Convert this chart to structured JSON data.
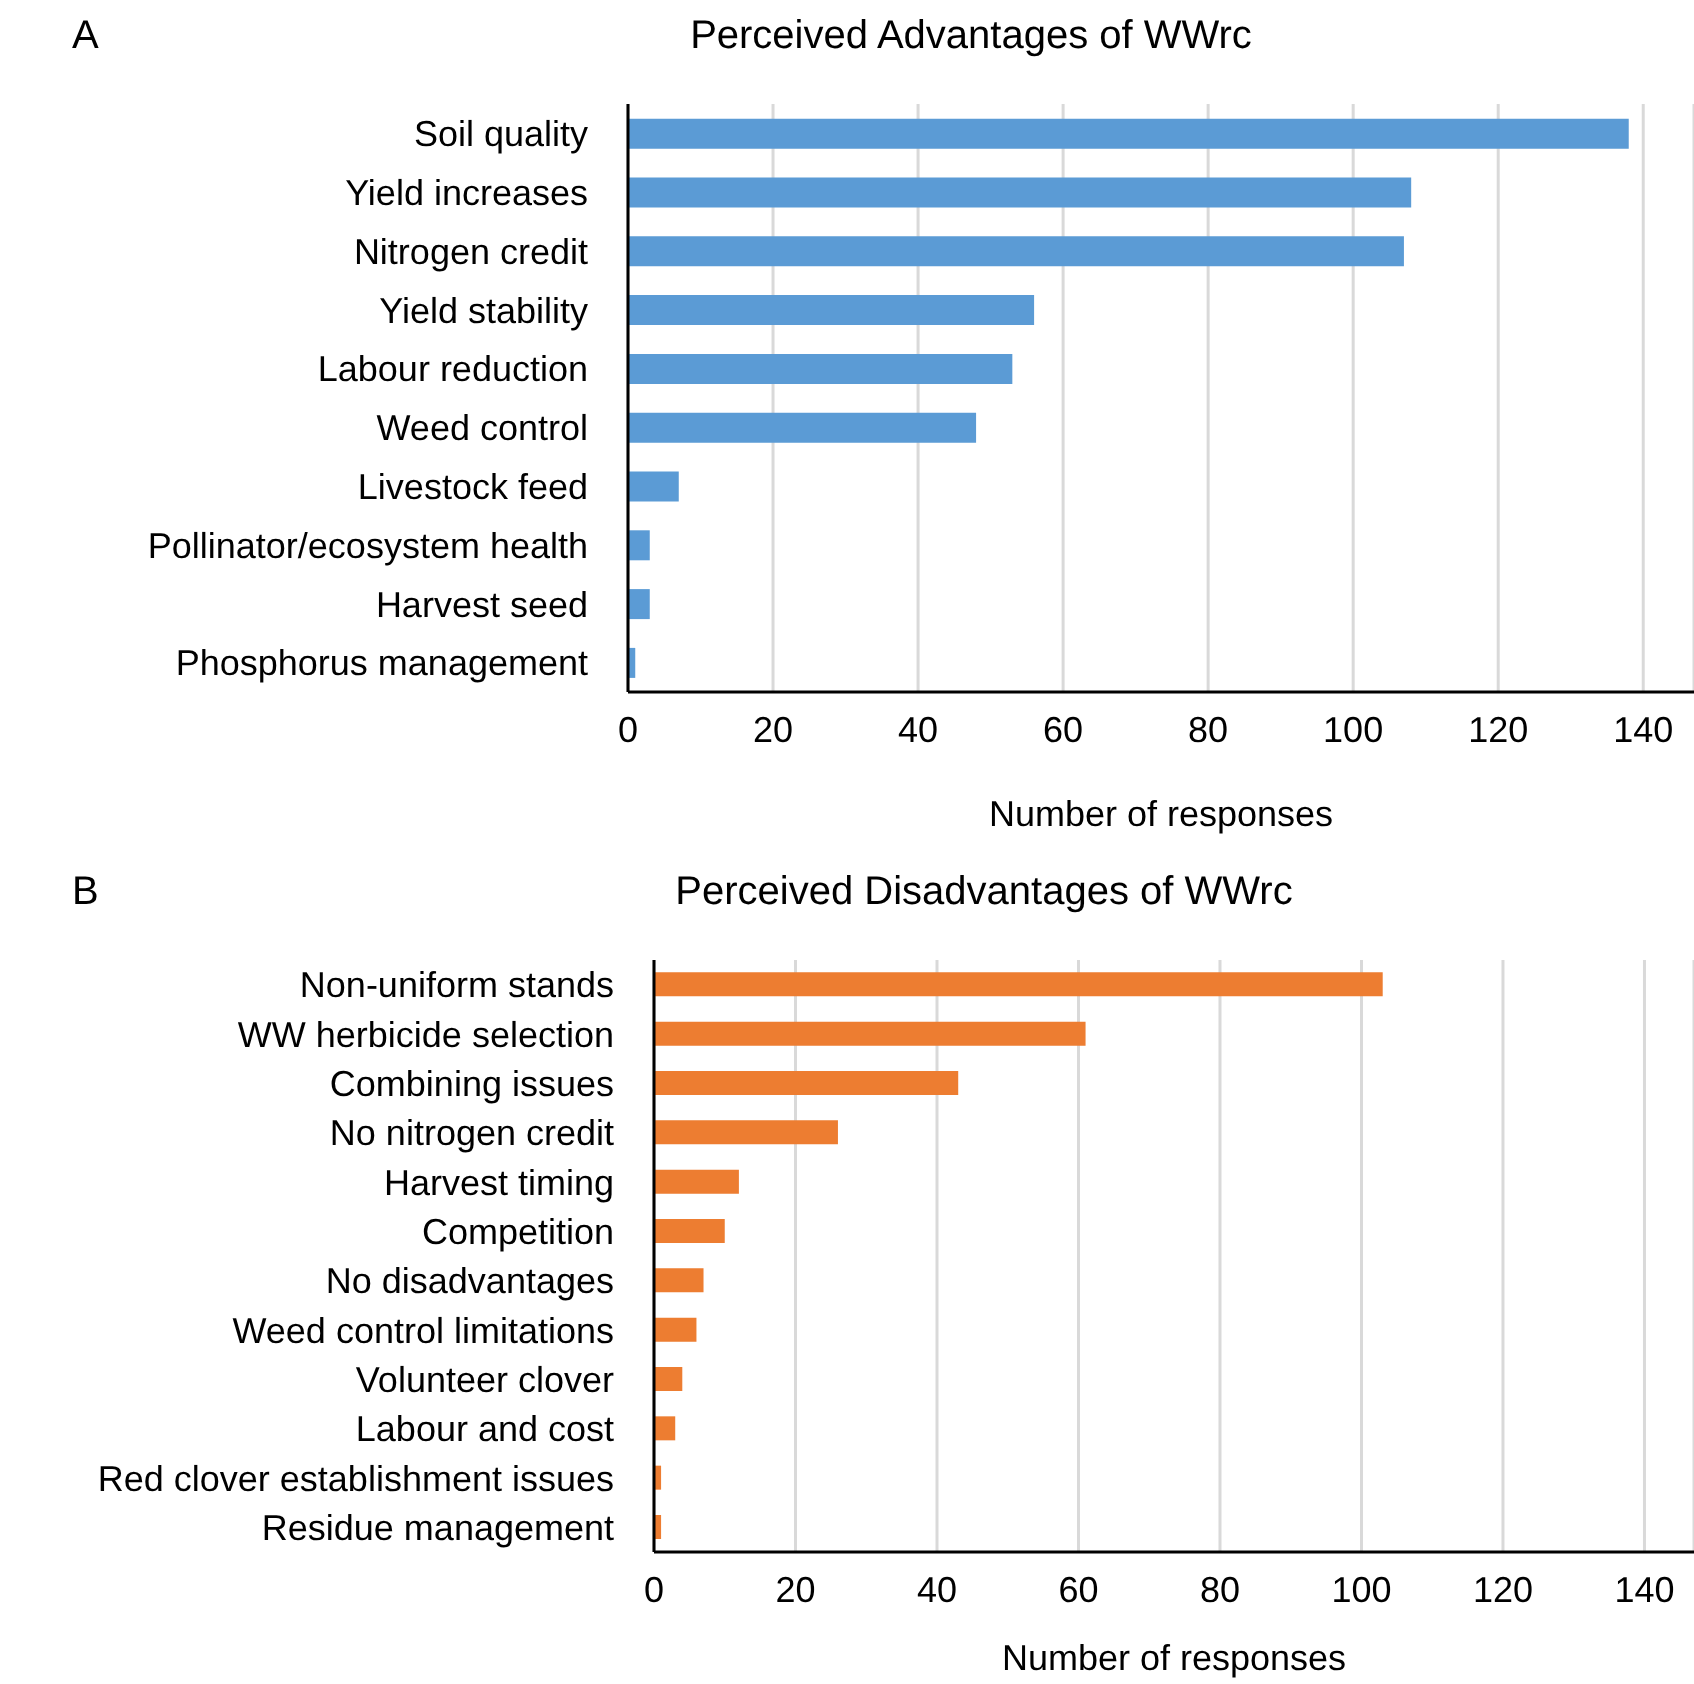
{
  "chart_data": [
    {
      "type": "bar",
      "orientation": "horizontal",
      "title": "Perceived Advantages of WWrc",
      "xlabel": "Number of responses",
      "annotations": [
        "A"
      ],
      "categories": [
        "Soil quality",
        "Yield increases",
        "Nitrogen credit",
        "Yield stability",
        "Labour reduction",
        "Weed control",
        "Livestock feed",
        "Pollinator/ecosystem health",
        "Harvest seed",
        "Phosphorus management"
      ],
      "values": [
        138,
        108,
        107,
        56,
        53,
        48,
        7,
        3,
        3,
        1
      ],
      "color": "#5b9bd5",
      "xlim": [
        0,
        147
      ],
      "xticks": [
        0,
        20,
        40,
        60,
        80,
        100,
        120,
        140
      ],
      "grid": "x",
      "legend": false
    },
    {
      "type": "bar",
      "orientation": "horizontal",
      "title": "Perceived Disadvantages of WWrc",
      "xlabel": "Number of responses",
      "annotations": [
        "B"
      ],
      "categories": [
        "Non-uniform stands",
        "WW herbicide selection",
        "Combining issues",
        "No nitrogen credit",
        "Harvest timing",
        "Competition",
        "No disadvantages",
        "Weed control limitations",
        "Volunteer clover",
        "Labour and cost",
        "Red clover establishment issues",
        "Residue management"
      ],
      "values": [
        103,
        61,
        43,
        26,
        12,
        10,
        7,
        6,
        4,
        3,
        1,
        1
      ],
      "color": "#ed7d31",
      "xlim": [
        0,
        147
      ],
      "xticks": [
        0,
        20,
        40,
        60,
        80,
        100,
        120,
        140
      ],
      "grid": "x",
      "legend": false
    }
  ]
}
